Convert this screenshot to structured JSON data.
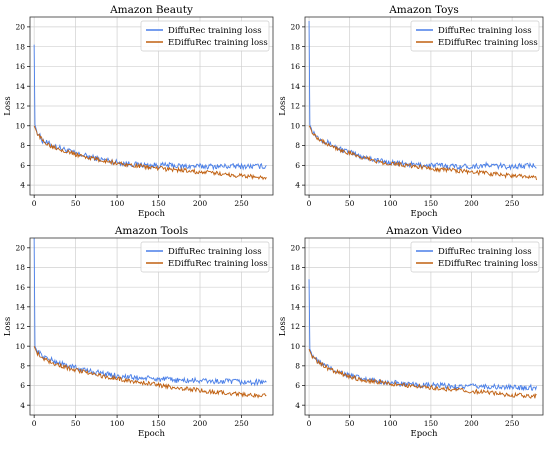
{
  "colors": {
    "diffurec": "#4a7fe8",
    "ediffurec": "#c06010",
    "grid": "#d0d0d0",
    "frame": "#333333"
  },
  "chart_data": [
    {
      "type": "line",
      "title": "Amazon Beauty",
      "xlabel": "Epoch",
      "ylabel": "Loss",
      "xlim": [
        -5,
        288
      ],
      "ylim": [
        3,
        21
      ],
      "xticks": [
        0,
        50,
        100,
        150,
        200,
        250
      ],
      "yticks": [
        4,
        6,
        8,
        10,
        12,
        14,
        16,
        18,
        20
      ],
      "grid": true,
      "legend": "top-right",
      "series": [
        {
          "name": "DiffuRec training loss",
          "color": "#4a7fe8",
          "x": [
            0,
            1,
            2,
            3,
            5,
            10,
            20,
            30,
            40,
            50,
            60,
            70,
            80,
            90,
            100,
            120,
            140,
            160,
            180,
            200,
            220,
            240,
            260,
            280
          ],
          "y": [
            18.2,
            10.1,
            9.8,
            9.5,
            9.2,
            8.5,
            8.1,
            7.8,
            7.5,
            7.2,
            7.0,
            6.8,
            6.6,
            6.5,
            6.3,
            6.1,
            6.0,
            6.0,
            5.9,
            5.9,
            5.9,
            5.9,
            5.9,
            5.9
          ]
        },
        {
          "name": "EDiffuRec training loss",
          "color": "#c06010",
          "x": [
            0,
            1,
            2,
            3,
            5,
            10,
            20,
            30,
            40,
            50,
            60,
            70,
            80,
            90,
            100,
            120,
            140,
            160,
            180,
            200,
            220,
            240,
            260,
            280
          ],
          "y": [
            10.0,
            9.8,
            9.6,
            9.4,
            9.1,
            8.5,
            8.0,
            7.7,
            7.4,
            7.1,
            6.9,
            6.7,
            6.5,
            6.4,
            6.2,
            6.0,
            5.8,
            5.6,
            5.5,
            5.3,
            5.2,
            5.0,
            4.9,
            4.7
          ]
        }
      ]
    },
    {
      "type": "line",
      "title": "Amazon Toys",
      "xlabel": "Epoch",
      "ylabel": "Loss",
      "xlim": [
        -5,
        288
      ],
      "ylim": [
        3,
        21
      ],
      "xticks": [
        0,
        50,
        100,
        150,
        200,
        250
      ],
      "yticks": [
        4,
        6,
        8,
        10,
        12,
        14,
        16,
        18,
        20
      ],
      "grid": true,
      "legend": "top-right",
      "series": [
        {
          "name": "DiffuRec training loss",
          "color": "#4a7fe8",
          "x": [
            0,
            1,
            2,
            3,
            5,
            10,
            20,
            30,
            40,
            50,
            60,
            70,
            80,
            90,
            100,
            120,
            140,
            160,
            180,
            200,
            220,
            240,
            260,
            280
          ],
          "y": [
            20.6,
            10.1,
            9.9,
            9.7,
            9.4,
            8.9,
            8.4,
            8.0,
            7.6,
            7.3,
            7.0,
            6.8,
            6.6,
            6.4,
            6.3,
            6.1,
            6.0,
            6.0,
            5.9,
            5.9,
            6.0,
            5.9,
            5.9,
            6.0
          ]
        },
        {
          "name": "EDiffuRec training loss",
          "color": "#c06010",
          "x": [
            0,
            1,
            2,
            3,
            5,
            10,
            20,
            30,
            40,
            50,
            60,
            70,
            80,
            90,
            100,
            120,
            140,
            160,
            180,
            200,
            220,
            240,
            260,
            280
          ],
          "y": [
            10.0,
            9.9,
            9.7,
            9.5,
            9.3,
            8.8,
            8.3,
            7.9,
            7.5,
            7.2,
            6.9,
            6.7,
            6.5,
            6.3,
            6.2,
            6.0,
            5.8,
            5.6,
            5.5,
            5.3,
            5.2,
            5.0,
            4.9,
            4.7
          ]
        }
      ]
    },
    {
      "type": "line",
      "title": "Amazon Tools",
      "xlabel": "Epoch",
      "ylabel": "Loss",
      "xlim": [
        -5,
        288
      ],
      "ylim": [
        3,
        21
      ],
      "xticks": [
        0,
        50,
        100,
        150,
        200,
        250
      ],
      "yticks": [
        4,
        6,
        8,
        10,
        12,
        14,
        16,
        18,
        20
      ],
      "grid": true,
      "legend": "top-right",
      "series": [
        {
          "name": "DiffuRec training loss",
          "color": "#4a7fe8",
          "x": [
            0,
            1,
            2,
            3,
            5,
            10,
            20,
            30,
            40,
            50,
            60,
            70,
            80,
            90,
            100,
            120,
            140,
            160,
            180,
            200,
            220,
            240,
            260,
            280
          ],
          "y": [
            21.0,
            10.0,
            9.8,
            9.6,
            9.4,
            9.0,
            8.6,
            8.3,
            8.0,
            7.8,
            7.6,
            7.4,
            7.3,
            7.1,
            7.0,
            6.8,
            6.7,
            6.6,
            6.5,
            6.5,
            6.4,
            6.4,
            6.3,
            6.4
          ]
        },
        {
          "name": "EDiffuRec training loss",
          "color": "#c06010",
          "x": [
            0,
            1,
            2,
            3,
            5,
            10,
            20,
            30,
            40,
            50,
            60,
            70,
            80,
            90,
            100,
            120,
            140,
            160,
            180,
            200,
            220,
            240,
            260,
            280
          ],
          "y": [
            10.0,
            9.8,
            9.6,
            9.4,
            9.2,
            8.8,
            8.4,
            8.1,
            7.8,
            7.6,
            7.4,
            7.2,
            7.0,
            6.8,
            6.7,
            6.4,
            6.2,
            5.9,
            5.7,
            5.5,
            5.3,
            5.2,
            5.0,
            5.0
          ]
        }
      ]
    },
    {
      "type": "line",
      "title": "Amazon Video",
      "xlabel": "Epoch",
      "ylabel": "Loss",
      "xlim": [
        -5,
        288
      ],
      "ylim": [
        3,
        21
      ],
      "xticks": [
        0,
        50,
        100,
        150,
        200,
        250
      ],
      "yticks": [
        4,
        6,
        8,
        10,
        12,
        14,
        16,
        18,
        20
      ],
      "grid": true,
      "legend": "top-right",
      "series": [
        {
          "name": "DiffuRec training loss",
          "color": "#4a7fe8",
          "x": [
            0,
            1,
            2,
            3,
            5,
            10,
            20,
            30,
            40,
            50,
            60,
            70,
            80,
            90,
            100,
            120,
            140,
            160,
            180,
            200,
            220,
            240,
            260,
            280
          ],
          "y": [
            16.8,
            9.7,
            9.5,
            9.3,
            9.0,
            8.5,
            8.0,
            7.6,
            7.3,
            7.0,
            6.8,
            6.6,
            6.5,
            6.4,
            6.3,
            6.1,
            6.0,
            6.0,
            5.9,
            5.9,
            5.9,
            5.8,
            5.8,
            5.8
          ]
        },
        {
          "name": "EDiffuRec training loss",
          "color": "#c06010",
          "x": [
            0,
            1,
            2,
            3,
            5,
            10,
            20,
            30,
            40,
            50,
            60,
            70,
            80,
            90,
            100,
            120,
            140,
            160,
            180,
            200,
            220,
            240,
            260,
            280
          ],
          "y": [
            9.7,
            9.5,
            9.3,
            9.1,
            8.9,
            8.4,
            7.9,
            7.5,
            7.2,
            6.9,
            6.7,
            6.5,
            6.4,
            6.3,
            6.2,
            6.0,
            5.9,
            5.7,
            5.6,
            5.4,
            5.3,
            5.1,
            5.0,
            4.9
          ]
        }
      ]
    }
  ]
}
